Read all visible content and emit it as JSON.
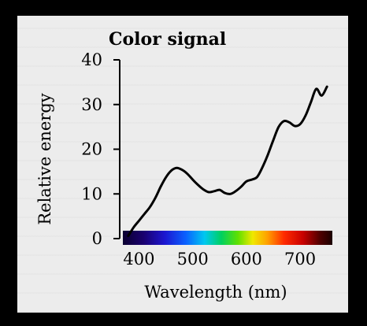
{
  "chart_data": {
    "type": "line",
    "title": "Color signal",
    "xlabel": "Wavelength (nm)",
    "ylabel": "Relative energy",
    "xlim": [
      370,
      760
    ],
    "ylim": [
      0,
      40
    ],
    "xticks": [
      "400",
      "500",
      "600",
      "700"
    ],
    "yticks": [
      "0",
      "10",
      "20",
      "30",
      "40"
    ],
    "xtick_values": [
      400,
      500,
      600,
      700
    ],
    "ytick_values": [
      0,
      10,
      20,
      30,
      40
    ],
    "grid": false,
    "spectrum_band": true,
    "series": [
      {
        "name": "",
        "color": "#000000",
        "x": [
          380,
          390,
          400,
          410,
          420,
          430,
          440,
          450,
          460,
          470,
          480,
          490,
          500,
          510,
          520,
          530,
          540,
          550,
          560,
          570,
          580,
          590,
          600,
          610,
          620,
          630,
          640,
          650,
          660,
          670,
          680,
          690,
          700,
          710,
          720,
          730,
          740,
          750
        ],
        "y": [
          0.6,
          2.5,
          4.0,
          5.5,
          7.0,
          9.0,
          11.5,
          13.7,
          15.2,
          15.8,
          15.4,
          14.5,
          13.2,
          12.0,
          11.0,
          10.4,
          10.6,
          10.9,
          10.2,
          10.0,
          10.6,
          11.6,
          12.8,
          13.2,
          13.8,
          16.0,
          18.8,
          22.0,
          25.0,
          26.3,
          26.0,
          25.2,
          25.6,
          27.5,
          30.5,
          33.5,
          32.0,
          34.0
        ]
      }
    ]
  },
  "colors": {
    "frame_background": "#ececec",
    "page_background": "#000000",
    "line": "#000000"
  }
}
